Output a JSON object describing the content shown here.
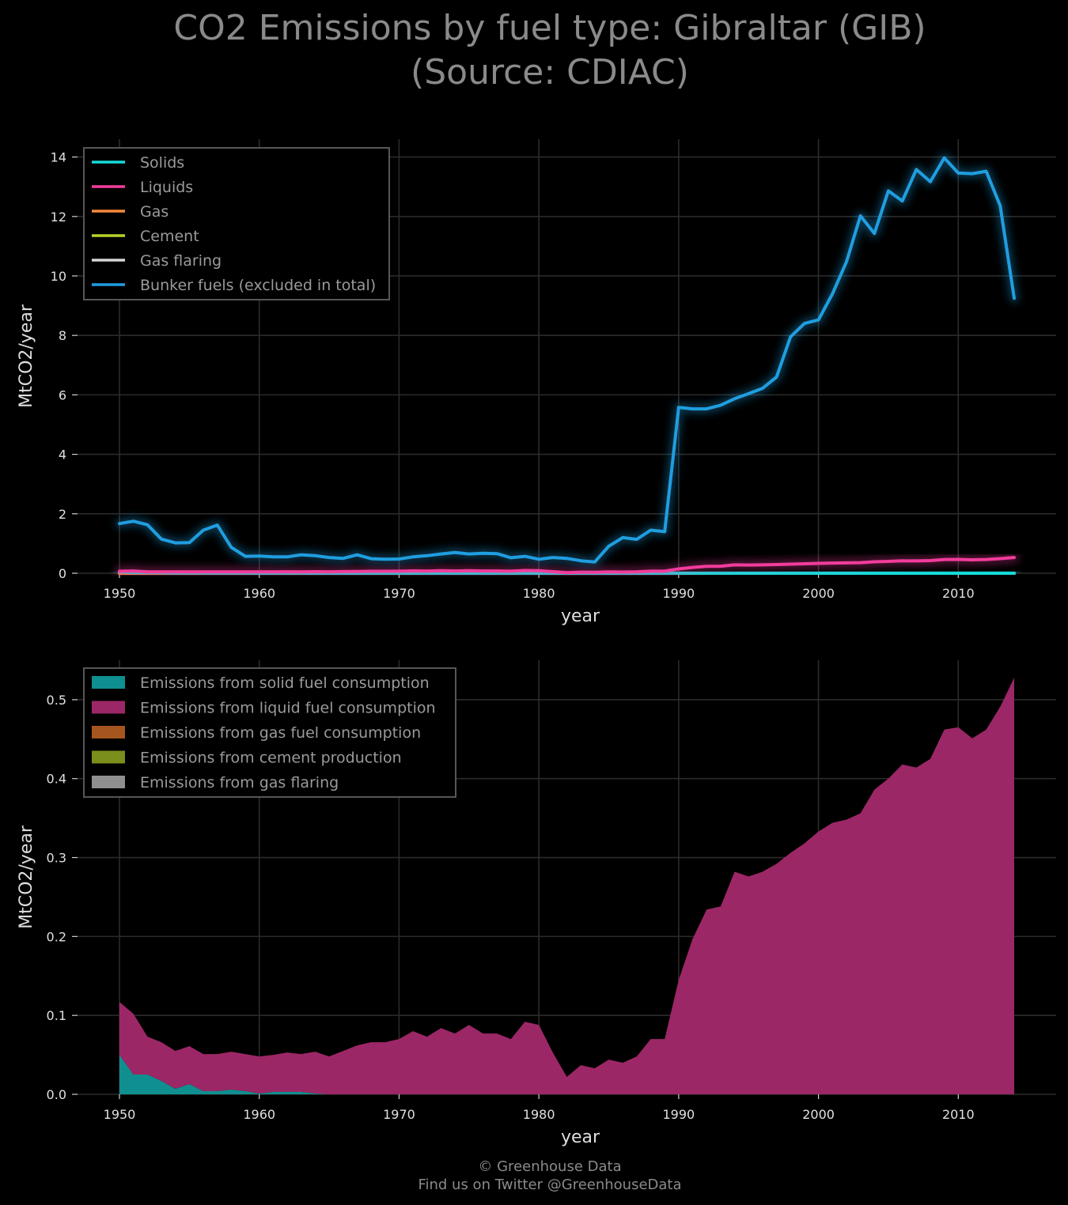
{
  "title": {
    "line1": "CO2 Emissions by fuel type: Gibraltar (GIB)",
    "line2": "(Source: CDIAC)"
  },
  "footer": {
    "line1": "© Greenhouse Data",
    "line2": "Find us on Twitter @GreenhouseData"
  },
  "colors": {
    "background": "#000000",
    "grid": "#2b2b2b",
    "solids": "#17d9d9",
    "liquids": "#f23c9c",
    "gas": "#f58a3c",
    "cement": "#b9d12a",
    "flaring": "#d6d6d6",
    "bunker": "#1f9ee0",
    "area_solid": "#0f8f8f",
    "area_liquid": "#9c2766",
    "area_gas": "#a5561e",
    "area_cement": "#7a8f1c",
    "area_flaring": "#8f8f8f"
  },
  "chart_data": [
    {
      "type": "line",
      "xlabel": "year",
      "ylabel": "MtCO2/year",
      "xlim": [
        1947,
        2017
      ],
      "ylim": [
        0,
        14.6
      ],
      "x_ticks": [
        1950,
        1960,
        1970,
        1980,
        1990,
        2000,
        2010
      ],
      "y_ticks": [
        0,
        2,
        4,
        6,
        8,
        10,
        12,
        14
      ],
      "grid": true,
      "legend_position": "top-left",
      "x": [
        1950,
        1951,
        1952,
        1953,
        1954,
        1955,
        1956,
        1957,
        1958,
        1959,
        1960,
        1961,
        1962,
        1963,
        1964,
        1965,
        1966,
        1967,
        1968,
        1969,
        1970,
        1971,
        1972,
        1973,
        1974,
        1975,
        1976,
        1977,
        1978,
        1979,
        1980,
        1981,
        1982,
        1983,
        1984,
        1985,
        1986,
        1987,
        1988,
        1989,
        1990,
        1991,
        1992,
        1993,
        1994,
        1995,
        1996,
        1997,
        1998,
        1999,
        2000,
        2001,
        2002,
        2003,
        2004,
        2005,
        2006,
        2007,
        2008,
        2009,
        2010,
        2011,
        2012,
        2013,
        2014
      ],
      "series": [
        {
          "name": "Solids",
          "color_key": "solids",
          "values": [
            0.05,
            0.025,
            0.025,
            0.017,
            0.007,
            0.013,
            0.004,
            0.004,
            0.006,
            0.004,
            0.001,
            0.003,
            0.003,
            0.003,
            0.001,
            0,
            0,
            0,
            0,
            0,
            0,
            0,
            0,
            0,
            0,
            0,
            0,
            0,
            0,
            0,
            0,
            0,
            0,
            0,
            0,
            0,
            0,
            0,
            0,
            0,
            0,
            0,
            0,
            0,
            0,
            0,
            0,
            0,
            0,
            0,
            0,
            0,
            0,
            0,
            0,
            0,
            0,
            0,
            0,
            0,
            0,
            0,
            0,
            0,
            0
          ]
        },
        {
          "name": "Liquids",
          "color_key": "liquids",
          "values": [
            0.067,
            0.077,
            0.048,
            0.049,
            0.048,
            0.048,
            0.047,
            0.047,
            0.048,
            0.047,
            0.047,
            0.047,
            0.05,
            0.048,
            0.053,
            0.048,
            0.055,
            0.062,
            0.066,
            0.066,
            0.07,
            0.08,
            0.073,
            0.084,
            0.077,
            0.088,
            0.077,
            0.077,
            0.07,
            0.092,
            0.088,
            0.053,
            0.022,
            0.037,
            0.033,
            0.044,
            0.04,
            0.048,
            0.07,
            0.07,
            0.145,
            0.197,
            0.234,
            0.238,
            0.282,
            0.276,
            0.282,
            0.292,
            0.306,
            0.318,
            0.333,
            0.344,
            0.348,
            0.356,
            0.386,
            0.4,
            0.418,
            0.414,
            0.425,
            0.462,
            0.465,
            0.451,
            0.462,
            0.491,
            0.528
          ]
        },
        {
          "name": "Gas",
          "color_key": "gas",
          "values": [
            0,
            0,
            0,
            0,
            0,
            0,
            0,
            0,
            0,
            0,
            0,
            0,
            0,
            0,
            0,
            0,
            0,
            0,
            0,
            0,
            0,
            0,
            0,
            0,
            0,
            0,
            0,
            0,
            0,
            0,
            0,
            0,
            0,
            0,
            0,
            0,
            0,
            0,
            0,
            0,
            0,
            0,
            0,
            0,
            0,
            0,
            0,
            0,
            0,
            0,
            0,
            0,
            0,
            0,
            0,
            0,
            0,
            0,
            0,
            0,
            0,
            0,
            0,
            0,
            0
          ]
        },
        {
          "name": "Cement",
          "color_key": "cement",
          "values": [
            0,
            0,
            0,
            0,
            0,
            0,
            0,
            0,
            0,
            0,
            0,
            0,
            0,
            0,
            0,
            0,
            0,
            0,
            0,
            0,
            0,
            0,
            0,
            0,
            0,
            0,
            0,
            0,
            0,
            0,
            0,
            0,
            0,
            0,
            0,
            0,
            0,
            0,
            0,
            0,
            0,
            0,
            0,
            0,
            0,
            0,
            0,
            0,
            0,
            0,
            0,
            0,
            0,
            0,
            0,
            0,
            0,
            0,
            0,
            0,
            0,
            0,
            0,
            0,
            0
          ]
        },
        {
          "name": "Gas flaring",
          "color_key": "flaring",
          "values": [
            0,
            0,
            0,
            0,
            0,
            0,
            0,
            0,
            0,
            0,
            0,
            0,
            0,
            0,
            0,
            0,
            0,
            0,
            0,
            0,
            0,
            0,
            0,
            0,
            0,
            0,
            0,
            0,
            0,
            0,
            0,
            0,
            0,
            0,
            0,
            0,
            0,
            0,
            0,
            0,
            0,
            0,
            0,
            0,
            0,
            0,
            0,
            0,
            0,
            0,
            0,
            0,
            0,
            0,
            0,
            0,
            0,
            0,
            0,
            0,
            0,
            0,
            0,
            0,
            0
          ]
        },
        {
          "name": "Bunker fuels (excluded in total)",
          "color_key": "bunker",
          "values": [
            1.67,
            1.75,
            1.63,
            1.15,
            1.02,
            1.03,
            1.45,
            1.62,
            0.87,
            0.57,
            0.58,
            0.55,
            0.55,
            0.62,
            0.59,
            0.53,
            0.5,
            0.62,
            0.49,
            0.47,
            0.48,
            0.55,
            0.59,
            0.65,
            0.7,
            0.65,
            0.67,
            0.66,
            0.52,
            0.57,
            0.47,
            0.53,
            0.5,
            0.42,
            0.38,
            0.91,
            1.2,
            1.14,
            1.45,
            1.4,
            5.58,
            5.53,
            5.53,
            5.65,
            5.87,
            6.04,
            6.22,
            6.6,
            7.95,
            8.4,
            8.52,
            9.4,
            10.47,
            12.02,
            11.43,
            12.86,
            12.52,
            13.58,
            13.17,
            13.97,
            13.46,
            13.44,
            13.52,
            12.36,
            9.25
          ]
        }
      ]
    },
    {
      "type": "area",
      "xlabel": "year",
      "ylabel": "MtCO2/year",
      "xlim": [
        1947,
        2017
      ],
      "ylim": [
        0,
        0.55
      ],
      "x_ticks": [
        1950,
        1960,
        1970,
        1980,
        1990,
        2000,
        2010
      ],
      "y_ticks": [
        0.0,
        0.1,
        0.2,
        0.3,
        0.4,
        0.5
      ],
      "y_tick_labels": [
        "0.0",
        "0.1",
        "0.2",
        "0.3",
        "0.4",
        "0.5"
      ],
      "grid": true,
      "stacked": true,
      "legend_position": "top-left",
      "series": [
        {
          "name": "Emissions from solid fuel consumption",
          "color_key": "area_solid",
          "source_index": 0
        },
        {
          "name": "Emissions from liquid fuel consumption",
          "color_key": "area_liquid",
          "source_index": 1
        },
        {
          "name": "Emissions from gas fuel consumption",
          "color_key": "area_gas",
          "source_index": 2
        },
        {
          "name": "Emissions from cement production",
          "color_key": "area_cement",
          "source_index": 3
        },
        {
          "name": "Emissions from gas flaring",
          "color_key": "area_flaring",
          "source_index": 4
        }
      ]
    }
  ]
}
